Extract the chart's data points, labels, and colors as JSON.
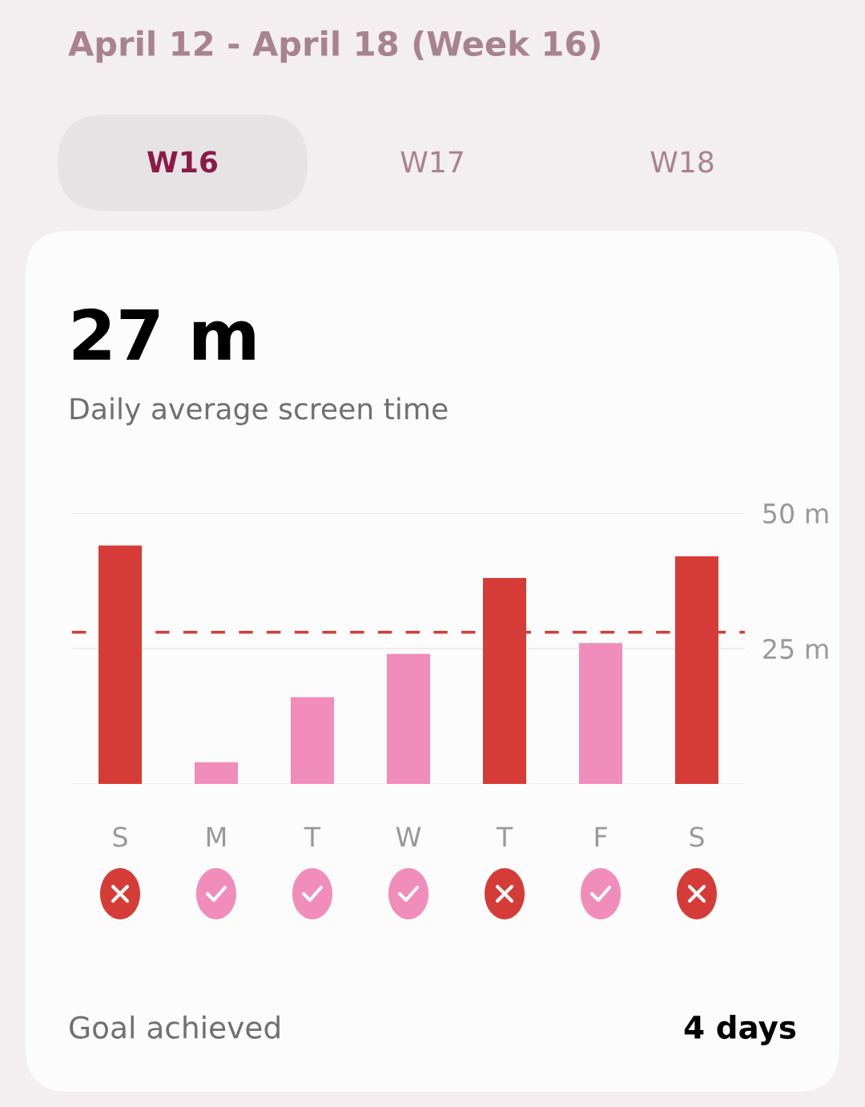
{
  "chart_data": {
    "type": "bar",
    "title": "April 12 - April 18 (Week 16)",
    "categories": [
      "S",
      "M",
      "T",
      "W",
      "T",
      "F",
      "S"
    ],
    "values": [
      44,
      4,
      16,
      24,
      38,
      26,
      42
    ],
    "colors": [
      "#d63c37",
      "#f08dba",
      "#f08dba",
      "#f08dba",
      "#d63c37",
      "#f08dba",
      "#d63c37"
    ],
    "ylim": [
      0,
      50
    ],
    "yticks": [
      {
        "value": 0,
        "label": null
      },
      {
        "value": 25,
        "label": "25 m"
      },
      {
        "value": 50,
        "label": "50 m"
      }
    ],
    "grid": "y",
    "ref_lines": [
      {
        "axis": "y",
        "value": 28,
        "color": "#d63c37",
        "line_style": "dashed"
      }
    ],
    "annotations": [
      "W16",
      "W17",
      "W18",
      "27 m",
      "Daily average screen time",
      "Goal achieved",
      "4 days"
    ]
  }
}
